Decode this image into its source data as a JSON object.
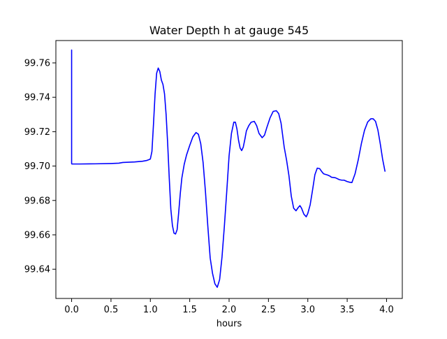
{
  "chart_data": {
    "type": "line",
    "title": "Water Depth h at gauge 545",
    "xlabel": "hours",
    "ylabel": "",
    "xlim": [
      -0.2,
      4.2
    ],
    "ylim": [
      99.623,
      99.773
    ],
    "x_ticks": [
      0.0,
      0.5,
      1.0,
      1.5,
      2.0,
      2.5,
      3.0,
      3.5,
      4.0
    ],
    "x_tick_labels": [
      "0.0",
      "0.5",
      "1.0",
      "1.5",
      "2.0",
      "2.5",
      "3.0",
      "3.5",
      "4.0"
    ],
    "y_ticks": [
      99.64,
      99.66,
      99.68,
      99.7,
      99.72,
      99.74,
      99.76
    ],
    "y_tick_labels": [
      "99.64",
      "99.66",
      "99.68",
      "99.70",
      "99.72",
      "99.74",
      "99.76"
    ],
    "grid": false,
    "line_color": "#0000ff",
    "series": [
      {
        "x": [
          0.0,
          0.0,
          0.003,
          0.1,
          0.3,
          0.5,
          0.6,
          0.65,
          0.8,
          0.9,
          0.95,
          0.98,
          1.0,
          1.02,
          1.04,
          1.06,
          1.08,
          1.1,
          1.12,
          1.14,
          1.16,
          1.18,
          1.2,
          1.22,
          1.24,
          1.26,
          1.28,
          1.3,
          1.32,
          1.34,
          1.36,
          1.38,
          1.4,
          1.43,
          1.46,
          1.5,
          1.54,
          1.58,
          1.61,
          1.64,
          1.67,
          1.7,
          1.73,
          1.76,
          1.79,
          1.82,
          1.85,
          1.88,
          1.91,
          1.94,
          1.97,
          2.0,
          2.03,
          2.06,
          2.08,
          2.1,
          2.12,
          2.14,
          2.16,
          2.18,
          2.2,
          2.22,
          2.25,
          2.28,
          2.32,
          2.35,
          2.38,
          2.42,
          2.45,
          2.48,
          2.52,
          2.56,
          2.6,
          2.63,
          2.66,
          2.68,
          2.7,
          2.73,
          2.76,
          2.79,
          2.82,
          2.85,
          2.88,
          2.9,
          2.92,
          2.95,
          2.98,
          3.0,
          3.03,
          3.06,
          3.09,
          3.12,
          3.15,
          3.18,
          3.2,
          3.22,
          3.25,
          3.28,
          3.3,
          3.35,
          3.4,
          3.43,
          3.46,
          3.5,
          3.53,
          3.56,
          3.6,
          3.64,
          3.68,
          3.72,
          3.76,
          3.8,
          3.83,
          3.86,
          3.89,
          3.92,
          3.95,
          3.98
        ],
        "y": [
          99.7675,
          99.7015,
          99.7012,
          99.7012,
          99.7013,
          99.7015,
          99.7017,
          99.7021,
          99.7024,
          99.7028,
          99.7032,
          99.7037,
          99.7041,
          99.7085,
          99.7245,
          99.742,
          99.754,
          99.757,
          99.755,
          99.75,
          99.7475,
          99.742,
          99.73,
          99.713,
          99.693,
          99.675,
          99.6655,
          99.661,
          99.6605,
          99.663,
          99.673,
          99.684,
          99.693,
          99.701,
          99.7065,
          99.712,
          99.717,
          99.7195,
          99.7185,
          99.713,
          99.702,
          99.685,
          99.665,
          99.6465,
          99.6375,
          99.6315,
          99.6295,
          99.634,
          99.647,
          99.665,
          99.685,
          99.706,
          99.719,
          99.7255,
          99.7255,
          99.7215,
          99.715,
          99.7105,
          99.709,
          99.711,
          99.7155,
          99.7205,
          99.7235,
          99.7255,
          99.726,
          99.7235,
          99.719,
          99.7165,
          99.718,
          99.7225,
          99.728,
          99.7318,
          99.7322,
          99.7305,
          99.725,
          99.718,
          99.711,
          99.7035,
          99.6945,
          99.6825,
          99.6755,
          99.674,
          99.676,
          99.677,
          99.6755,
          99.672,
          99.6705,
          99.6725,
          99.6775,
          99.686,
          99.695,
          99.6988,
          99.6985,
          99.6966,
          99.6955,
          99.6952,
          99.6948,
          99.6942,
          99.6935,
          99.6932,
          99.6921,
          99.6918,
          99.6918,
          99.691,
          99.6906,
          99.6904,
          99.6955,
          99.7035,
          99.713,
          99.7208,
          99.7256,
          99.7275,
          99.7275,
          99.726,
          99.721,
          99.713,
          99.704,
          99.697
        ]
      }
    ]
  }
}
